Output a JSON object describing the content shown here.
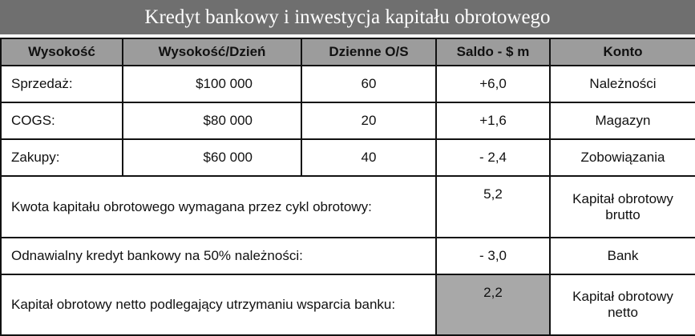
{
  "title": "Kredyt bankowy i inwestycja kapitału obrotowego",
  "headers": [
    "Wysokość",
    "Wysokość/Dzień",
    "Dzienne O/S",
    "Saldo - $ m",
    "Konto"
  ],
  "rows": [
    {
      "label": "Sprzedaż:",
      "amount": "$100 000",
      "days": "60",
      "balance": "+6,0",
      "account": "Należności"
    },
    {
      "label": "COGS:",
      "amount": "$80 000",
      "days": "20",
      "balance": "+1,6",
      "account": "Magazyn"
    },
    {
      "label": "Zakupy:",
      "amount": "$60 000",
      "days": "40",
      "balance": "- 2,4",
      "account": "Zobowiązania"
    }
  ],
  "summary": [
    {
      "label": "Kwota kapitału obrotowego wymagana przez cykl obrotowy:",
      "balance": "5,2",
      "account": "Kapitał obrotowy brutto"
    },
    {
      "label": "Odnawialny kredyt bankowy na 50% należności:",
      "balance": "- 3,0",
      "account": "Bank"
    },
    {
      "label": "Kapitał obrotowy netto podlegający utrzymaniu wsparcia banku:",
      "balance": "2,2",
      "account": "Kapitał obrotowy netto"
    }
  ]
}
